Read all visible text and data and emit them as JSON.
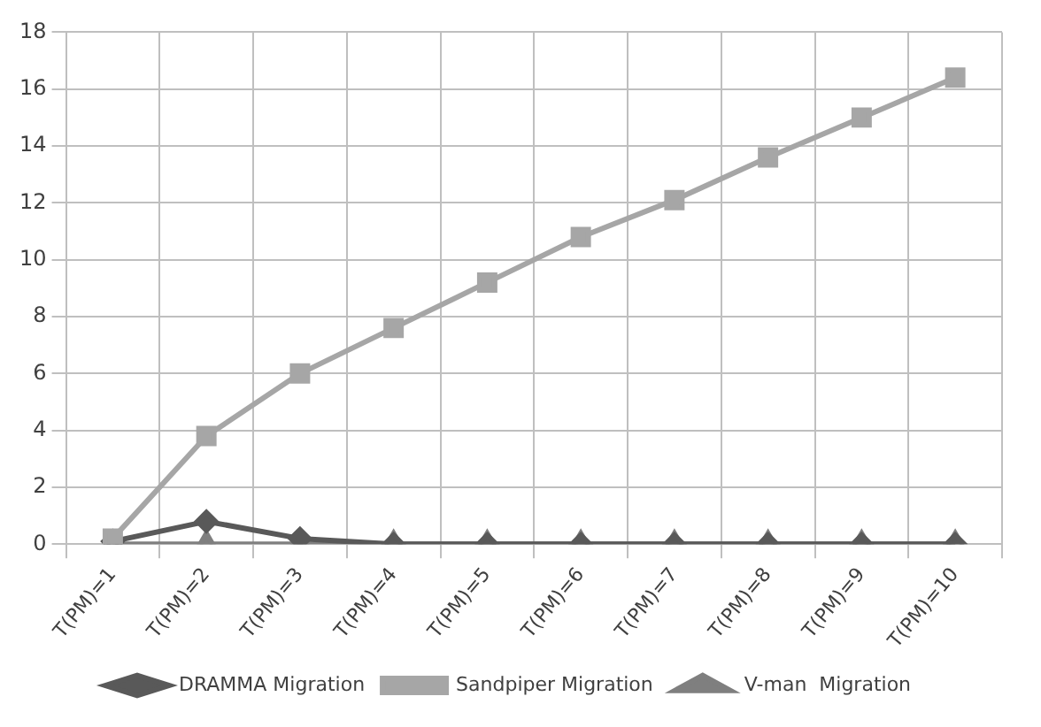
{
  "chart_data": {
    "type": "line",
    "categories": [
      "T(PM)=1",
      "T(PM)=2",
      "T(PM)=3",
      "T(PM)=4",
      "T(PM)=5",
      "T(PM)=6",
      "T(PM)=7",
      "T(PM)=8",
      "T(PM)=9",
      "T(PM)=10"
    ],
    "series": [
      {
        "name": "DRAMMA Migration",
        "color": "#595959",
        "marker": "diamond",
        "values": [
          0.1,
          0.8,
          0.2,
          0,
          0,
          0,
          0,
          0,
          0,
          0
        ]
      },
      {
        "name": "Sandpiper Migration",
        "color": "#a6a6a6",
        "marker": "square",
        "values": [
          0.2,
          3.8,
          6,
          7.6,
          9.2,
          10.8,
          12.1,
          13.6,
          15,
          16.4
        ]
      },
      {
        "name": "V-man  Migration",
        "color": "#7f7f7f",
        "marker": "triangle",
        "values": [
          0,
          0,
          0,
          0,
          0,
          0,
          0,
          0,
          0,
          0
        ]
      }
    ],
    "ylim": [
      0,
      18
    ],
    "yticks": [
      0,
      2,
      4,
      6,
      8,
      10,
      12,
      14,
      16,
      18
    ],
    "grid": true,
    "legend": "bottom",
    "line_style": "solid"
  }
}
